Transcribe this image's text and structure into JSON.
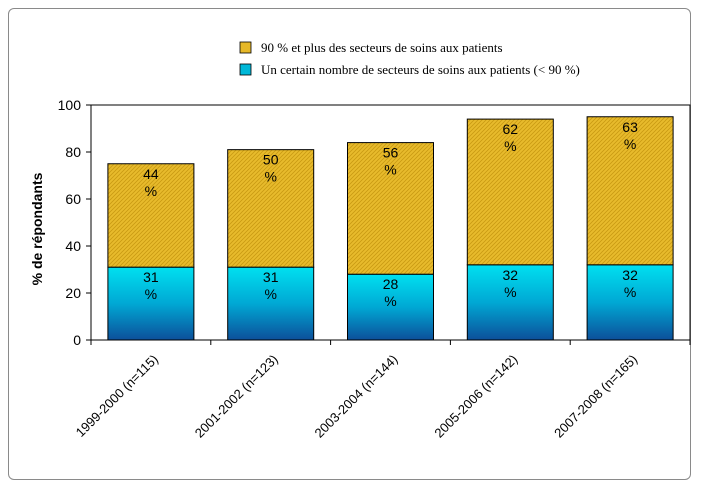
{
  "chart_data": {
    "type": "bar",
    "stacked": true,
    "categories": [
      "1999-2000 (n=115)",
      "2001-2002 (n=123)",
      "2003-2004 (n=144)",
      "2005-2006 (n=142)",
      "2007-2008 (n=165)"
    ],
    "series": [
      {
        "name": "Un certain nombre de secteurs de soins aux patients (< 90 %)",
        "values": [
          31,
          31,
          28,
          32,
          32
        ],
        "labels": [
          "31 %",
          "31 %",
          "28 %",
          "32 %",
          "32 %"
        ],
        "color": "#00b8d8"
      },
      {
        "name": "90 % et plus des secteurs de soins aux patients",
        "values": [
          44,
          50,
          56,
          62,
          63
        ],
        "labels": [
          "44 %",
          "50 %",
          "56 %",
          "62 %",
          "63 %"
        ],
        "color": "#e6b828"
      }
    ],
    "legend_order": [
      1,
      0
    ],
    "ylabel": "% de répondants",
    "ylim": [
      0,
      100
    ],
    "yticks": [
      "0",
      "20",
      "40",
      "60",
      "80",
      "100"
    ],
    "legend_position": "top",
    "grid": false
  }
}
